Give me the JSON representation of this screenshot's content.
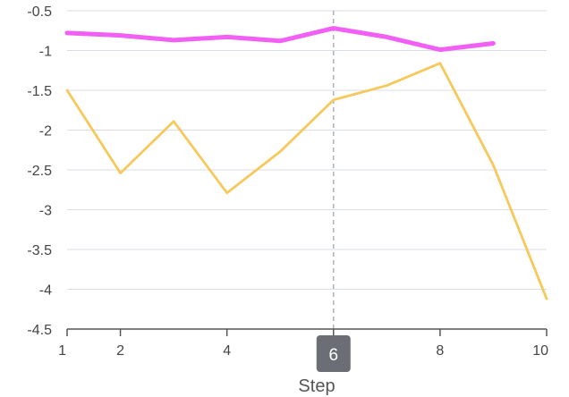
{
  "chart_data": {
    "type": "line",
    "xlabel": "Step",
    "ylabel": "",
    "xlim": [
      1,
      10
    ],
    "ylim": [
      -4.5,
      -0.5
    ],
    "x_ticks": [
      1,
      2,
      4,
      6,
      8,
      10
    ],
    "y_ticks": [
      -0.5,
      -1,
      -1.5,
      -2,
      -2.5,
      -3,
      -3.5,
      -4,
      -4.5
    ],
    "grid": true,
    "hover_x": 6,
    "series": [
      {
        "color": "#f25ff5",
        "x": [
          1,
          2,
          3,
          4,
          5,
          6,
          7,
          8,
          9
        ],
        "values": [
          -0.78,
          -0.81,
          -0.87,
          -0.83,
          -0.88,
          -0.72,
          -0.83,
          -0.99,
          -0.91
        ]
      },
      {
        "color": "#f7c95c",
        "x": [
          1,
          2,
          3,
          4,
          5,
          6,
          7,
          8,
          9,
          10
        ],
        "values": [
          -1.5,
          -2.54,
          -1.89,
          -2.79,
          -2.27,
          -1.62,
          -1.44,
          -1.16,
          -2.44,
          -4.12
        ]
      }
    ]
  }
}
